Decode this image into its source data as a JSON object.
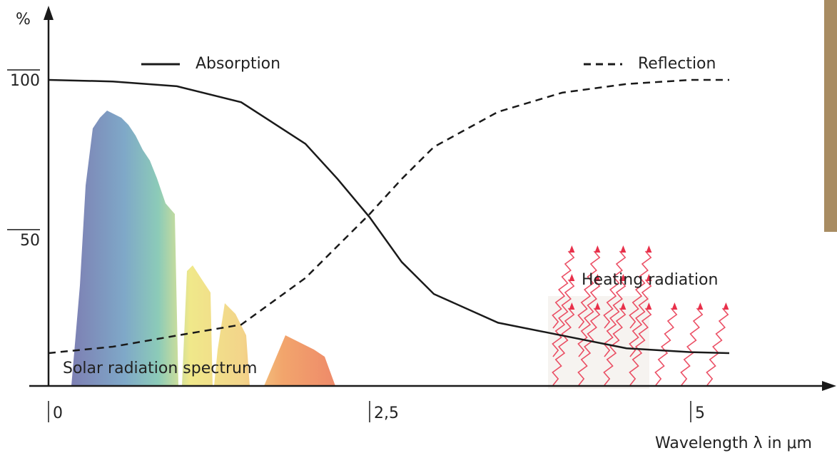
{
  "chart_data": {
    "type": "line",
    "x_label": "Wavelength λ in μm",
    "y_label": "%",
    "x": [
      0,
      0.5,
      1,
      1.5,
      2,
      2.25,
      2.5,
      2.75,
      3,
      3.5,
      4,
      4.5,
      5,
      5.3
    ],
    "series": [
      {
        "name": "Absorption",
        "color": "#1a1a1a",
        "style": "solid",
        "values": [
          100,
          99.5,
          98,
          93,
          80,
          69,
          57,
          43,
          33,
          24,
          20,
          16,
          14.8,
          14.5
        ]
      },
      {
        "name": "Reflection",
        "color": "#1a1a1a",
        "style": "dashed",
        "values": [
          14.5,
          16.5,
          20,
          23.4,
          38,
          48,
          58,
          69,
          79,
          90,
          96,
          98.7,
          100,
          100
        ]
      }
    ],
    "xlim": [
      -0.15,
      6.1
    ],
    "ylim": [
      4,
      122
    ],
    "xticks": [
      0,
      {
        "value": 2.5,
        "label": "2,5"
      },
      5
    ],
    "yticks": [
      50,
      100
    ],
    "grid": false,
    "annotations": [
      "Solar radiation spectrum",
      "Heating radiation"
    ]
  }
}
